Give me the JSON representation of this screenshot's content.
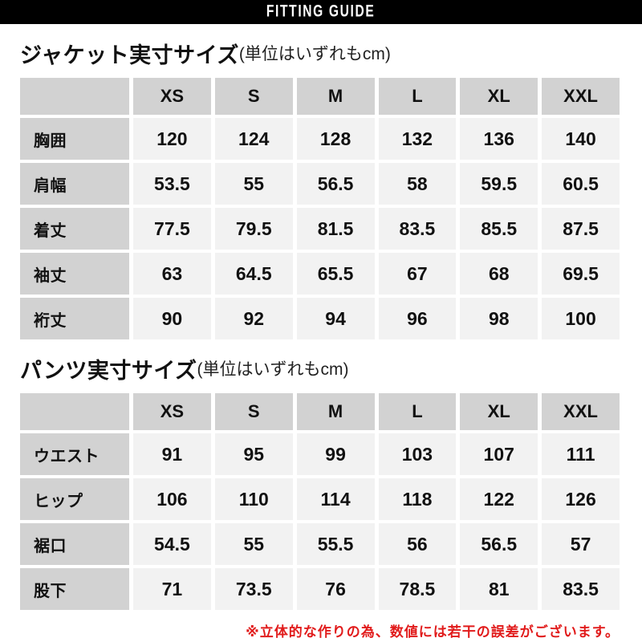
{
  "banner": {
    "title": "FITTING GUIDE"
  },
  "colors": {
    "banner_bg": "#000000",
    "banner_text": "#ffffff",
    "header_cell_bg": "#d2d2d2",
    "data_cell_bg": "#f2f2f2",
    "text": "#111111",
    "note_red": "#e11b1b"
  },
  "chart_data": [
    {
      "type": "table",
      "title": "ジャケット実寸サイズ",
      "title_note": "(単位はいずれもcm)",
      "unit": "cm",
      "columns": [
        "XS",
        "S",
        "M",
        "L",
        "XL",
        "XXL"
      ],
      "rows": [
        {
          "label": "胸囲",
          "values": [
            "120",
            "124",
            "128",
            "132",
            "136",
            "140"
          ]
        },
        {
          "label": "肩幅",
          "values": [
            "53.5",
            "55",
            "56.5",
            "58",
            "59.5",
            "60.5"
          ]
        },
        {
          "label": "着丈",
          "values": [
            "77.5",
            "79.5",
            "81.5",
            "83.5",
            "85.5",
            "87.5"
          ]
        },
        {
          "label": "袖丈",
          "values": [
            "63",
            "64.5",
            "65.5",
            "67",
            "68",
            "69.5"
          ]
        },
        {
          "label": "裄丈",
          "values": [
            "90",
            "92",
            "94",
            "96",
            "98",
            "100"
          ]
        }
      ]
    },
    {
      "type": "table",
      "title": "パンツ実寸サイズ",
      "title_note": "(単位はいずれもcm)",
      "unit": "cm",
      "columns": [
        "XS",
        "S",
        "M",
        "L",
        "XL",
        "XXL"
      ],
      "rows": [
        {
          "label": "ウエスト",
          "values": [
            "91",
            "95",
            "99",
            "103",
            "107",
            "111"
          ]
        },
        {
          "label": "ヒップ",
          "values": [
            "106",
            "110",
            "114",
            "118",
            "122",
            "126"
          ]
        },
        {
          "label": "裾口",
          "values": [
            "54.5",
            "55",
            "55.5",
            "56",
            "56.5",
            "57"
          ]
        },
        {
          "label": "股下",
          "values": [
            "71",
            "73.5",
            "76",
            "78.5",
            "81",
            "83.5"
          ]
        }
      ]
    }
  ],
  "footnote": {
    "text": "※立体的な作りの為、数値には若干の誤差がございます。"
  }
}
